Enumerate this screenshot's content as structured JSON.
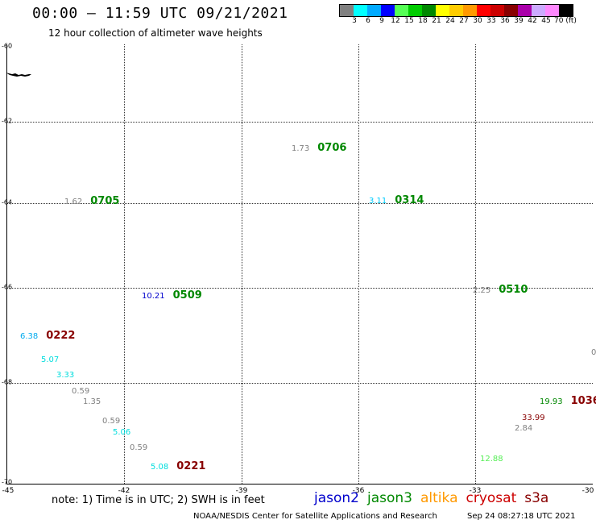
{
  "title": "00:00 – 11:59 UTC 09/21/2021",
  "subtitle": "12 hour collection of altimeter wave heights",
  "legend": {
    "colors": [
      "#808080",
      "#00ffff",
      "#00aaff",
      "#0000ff",
      "#55ff55",
      "#00cc00",
      "#008800",
      "#ffff00",
      "#ffcc00",
      "#ff9900",
      "#ff0000",
      "#cc0000",
      "#880000",
      "#aa00aa",
      "#ccaaff",
      "#ff88ff",
      "#000000"
    ],
    "ticks": [
      "3",
      "6",
      "9",
      "12",
      "15",
      "18",
      "21",
      "24",
      "27",
      "30",
      "33",
      "36",
      "39",
      "42",
      "45",
      "70 (ft)"
    ]
  },
  "axes": {
    "lon_labels": [
      "-45",
      "-42",
      "-39",
      "-36",
      "-33",
      "-30"
    ],
    "lat_labels": [
      "-60",
      "-62",
      "-64",
      "-66",
      "-68",
      "-70"
    ],
    "lon_range": [
      -45,
      -30
    ],
    "lat_range": [
      -60,
      -70
    ]
  },
  "observations": [
    {
      "swh": "1.73",
      "swh_color": "#808080",
      "time": "0706",
      "time_color": "#008800"
    },
    {
      "swh": "1.62",
      "swh_color": "#808080",
      "time": "0705",
      "time_color": "#008800"
    },
    {
      "swh": "3.11",
      "swh_color": "#00ccff",
      "time": "0314",
      "time_color": "#008800"
    },
    {
      "swh": "2.25",
      "swh_color": "#808080",
      "time": "0510",
      "time_color": "#008800"
    },
    {
      "swh": "10.21",
      "swh_color": "#0000cc",
      "time": "0509",
      "time_color": "#008800"
    },
    {
      "swh": "6.38",
      "swh_color": "#00aaee",
      "time": "0222",
      "time_color": "#880000"
    },
    {
      "swh": "5.07",
      "swh_color": "#00dddd",
      "time": "",
      "time_color": "#000000"
    },
    {
      "swh": "3.33",
      "swh_color": "#00dddd",
      "time": "",
      "time_color": "#000000"
    },
    {
      "swh": "0.59",
      "swh_color": "#808080",
      "time": "",
      "time_color": "#000000"
    },
    {
      "swh": "1.35",
      "swh_color": "#808080",
      "time": "",
      "time_color": "#000000"
    },
    {
      "swh": "0.59",
      "swh_color": "#808080",
      "time": "",
      "time_color": "#000000"
    },
    {
      "swh": "5.06",
      "swh_color": "#00dddd",
      "time": "",
      "time_color": "#000000"
    },
    {
      "swh": "0.59",
      "swh_color": "#808080",
      "time": "",
      "time_color": "#000000"
    },
    {
      "swh": "5.08",
      "swh_color": "#00dddd",
      "time": "0221",
      "time_color": "#880000"
    },
    {
      "swh": "19.93",
      "swh_color": "#008800",
      "time": "1036",
      "time_color": "#880000"
    },
    {
      "swh": "33.99",
      "swh_color": "#880000",
      "time": "",
      "time_color": "#000000"
    },
    {
      "swh": "2.84",
      "swh_color": "#808080",
      "time": "",
      "time_color": "#000000"
    },
    {
      "swh": "12.88",
      "swh_color": "#55ee55",
      "time": "",
      "time_color": "#000000"
    },
    {
      "swh": "0",
      "swh_color": "#808080",
      "time": "",
      "time_color": "#000000"
    }
  ],
  "note": "note: 1) Time is in UTC; 2) SWH is in feet",
  "satellites": [
    {
      "name": "jason2",
      "color": "#0000cc"
    },
    {
      "name": "jason3",
      "color": "#008800"
    },
    {
      "name": "altika",
      "color": "#ff9900"
    },
    {
      "name": "cryosat",
      "color": "#cc0000"
    },
    {
      "name": "s3a",
      "color": "#880000"
    }
  ],
  "credit": "NOAA/NESDIS Center for Satellite Applications and Research",
  "timestamp": "Sep 24 08:27:18 UTC 2021"
}
